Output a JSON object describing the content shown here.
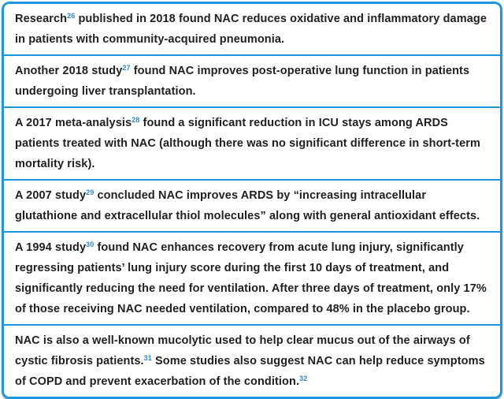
{
  "page": {
    "background_color": "#ffffff"
  },
  "card": {
    "border_color": "#1e96e0",
    "text_color": "#1f1f1f",
    "reference_color": "#2b87d9",
    "boxes": [
      {
        "segments": [
          {
            "text": "Research"
          },
          {
            "sup": "26"
          },
          {
            "text": " published in 2018 found NAC reduces oxidative and inflammatory damage in patients with community-acquired pneumonia."
          }
        ]
      },
      {
        "segments": [
          {
            "text": "Another 2018 study"
          },
          {
            "sup": "27"
          },
          {
            "text": " found NAC improves post-operative lung function in patients undergoing liver transplantation."
          }
        ]
      },
      {
        "segments": [
          {
            "text": "A 2017 meta-analysis"
          },
          {
            "sup": "28"
          },
          {
            "text": " found a significant reduction in ICU stays among ARDS patients treated with NAC (although there was no significant difference in short-term mortality risk)."
          }
        ]
      },
      {
        "segments": [
          {
            "text": "A 2007 study"
          },
          {
            "sup": "29"
          },
          {
            "text": " concluded NAC improves ARDS by “increasing intracellular glutathione and extracellular thiol molecules” along with general antioxidant effects."
          }
        ]
      },
      {
        "segments": [
          {
            "text": "A 1994 study"
          },
          {
            "sup": "30"
          },
          {
            "text": " found NAC enhances recovery from acute lung injury, significantly regressing patients’ lung injury score during the first 10 days of treatment, and significantly reducing the need for ventilation. After three days of treatment, only 17% of those receiving NAC needed ventilation, compared to 48% in the placebo group."
          }
        ]
      },
      {
        "segments": [
          {
            "text": "NAC is also a well-known mucolytic used to help clear mucus out of the airways of cystic fibrosis patients."
          },
          {
            "sup": "31"
          },
          {
            "text": " Some studies also suggest NAC can help reduce symptoms of COPD and prevent exacerbation of the condition."
          },
          {
            "sup": "32"
          }
        ]
      }
    ]
  }
}
